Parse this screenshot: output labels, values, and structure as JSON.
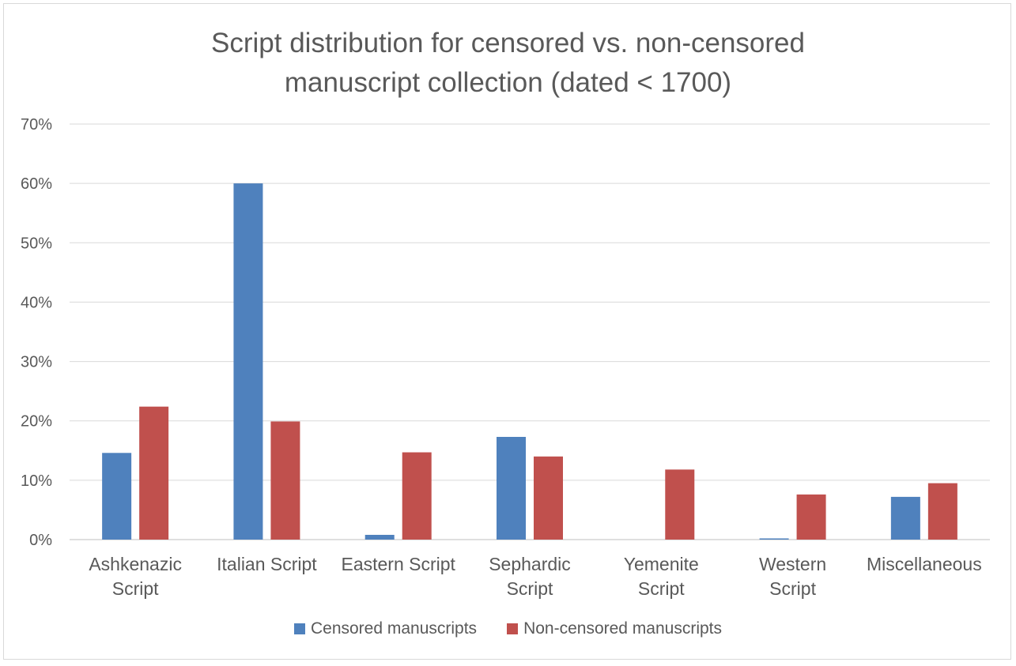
{
  "chart_data": {
    "type": "bar",
    "title": "Script distribution for censored vs. non-censored manuscript collection (dated < 1700)",
    "title_lines": [
      "Script distribution for censored vs. non-censored",
      "manuscript collection (dated < 1700)"
    ],
    "categories": [
      [
        "Ashkenazic",
        "Script"
      ],
      [
        "Italian Script"
      ],
      [
        "Eastern Script"
      ],
      [
        "Sephardic",
        "Script"
      ],
      [
        "Yemenite",
        "Script"
      ],
      [
        "Western",
        "Script"
      ],
      [
        "Miscellaneous"
      ]
    ],
    "series": [
      {
        "name": "Censored manuscripts",
        "color": "#4f81bd",
        "values": [
          14.6,
          60.0,
          0.8,
          17.3,
          0.0,
          0.2,
          7.2
        ]
      },
      {
        "name": "Non-censored manuscripts",
        "color": "#c0504d",
        "values": [
          22.4,
          19.9,
          14.7,
          14.0,
          11.8,
          7.6,
          9.5
        ]
      }
    ],
    "ylim": [
      0,
      70
    ],
    "yticks": [
      "0%",
      "10%",
      "20%",
      "30%",
      "40%",
      "50%",
      "60%",
      "70%"
    ],
    "grid": true,
    "legend_position": "bottom"
  }
}
